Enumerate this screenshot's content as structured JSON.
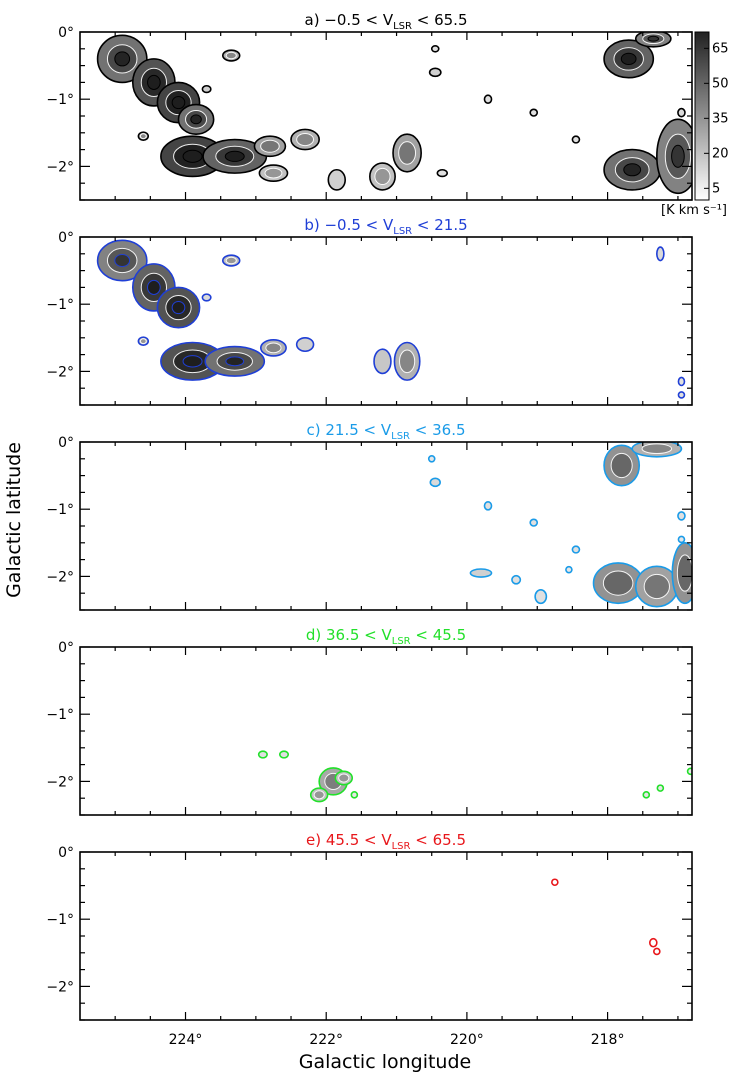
{
  "chart_data": {
    "type": "contour map",
    "xlabel": "Galactic longitude",
    "ylabel": "Galactic latitude",
    "xlim": [
      225.5,
      216.8
    ],
    "ylim": [
      -2.5,
      0
    ],
    "x_ticks": [
      224,
      222,
      220,
      218
    ],
    "x_tick_labels": [
      "224°",
      "222°",
      "220°",
      "218°"
    ],
    "y_ticks": [
      0,
      -1,
      -2
    ],
    "y_tick_labels": [
      "0°",
      "−1°",
      "−2°"
    ],
    "colorbar": {
      "ticks": [
        65,
        50,
        35,
        20,
        5
      ],
      "range": [
        0,
        72
      ],
      "unit_label": "[K km s⁻¹]"
    },
    "panels": [
      {
        "letter": "a)",
        "vmin": "−0.5",
        "vmax": "65.5",
        "color": "#000000",
        "shade": true,
        "clouds": [
          {
            "l": 224.9,
            "b": -0.4,
            "ra": 0.35,
            "rb": 0.35,
            "v": 45
          },
          {
            "l": 224.45,
            "b": -0.75,
            "ra": 0.3,
            "rb": 0.35,
            "v": 55
          },
          {
            "l": 224.1,
            "b": -1.05,
            "ra": 0.3,
            "rb": 0.3,
            "v": 60
          },
          {
            "l": 223.85,
            "b": -1.3,
            "ra": 0.25,
            "rb": 0.22,
            "v": 45
          },
          {
            "l": 223.35,
            "b": -0.35,
            "ra": 0.12,
            "rb": 0.08,
            "v": 25
          },
          {
            "l": 223.7,
            "b": -0.85,
            "ra": 0.06,
            "rb": 0.05,
            "v": 15
          },
          {
            "l": 224.6,
            "b": -1.55,
            "ra": 0.07,
            "rb": 0.06,
            "v": 25
          },
          {
            "l": 223.9,
            "b": -1.85,
            "ra": 0.45,
            "rb": 0.3,
            "v": 60
          },
          {
            "l": 223.3,
            "b": -1.85,
            "ra": 0.45,
            "rb": 0.25,
            "v": 50
          },
          {
            "l": 222.8,
            "b": -1.7,
            "ra": 0.22,
            "rb": 0.15,
            "v": 30
          },
          {
            "l": 222.75,
            "b": -2.1,
            "ra": 0.2,
            "rb": 0.12,
            "v": 20
          },
          {
            "l": 222.3,
            "b": -1.6,
            "ra": 0.2,
            "rb": 0.15,
            "v": 25
          },
          {
            "l": 221.2,
            "b": -2.15,
            "ra": 0.18,
            "rb": 0.2,
            "v": 20
          },
          {
            "l": 220.85,
            "b": -1.8,
            "ra": 0.2,
            "rb": 0.28,
            "v": 30
          },
          {
            "l": 221.85,
            "b": -2.2,
            "ra": 0.12,
            "rb": 0.15,
            "v": 15
          },
          {
            "l": 220.35,
            "b": -2.1,
            "ra": 0.07,
            "rb": 0.05,
            "v": 10
          },
          {
            "l": 217.7,
            "b": -0.4,
            "ra": 0.35,
            "rb": 0.28,
            "v": 50
          },
          {
            "l": 217.35,
            "b": -0.1,
            "ra": 0.25,
            "rb": 0.12,
            "v": 40
          },
          {
            "l": 217.65,
            "b": -2.05,
            "ra": 0.4,
            "rb": 0.3,
            "v": 45
          },
          {
            "l": 217.0,
            "b": -1.85,
            "ra": 0.3,
            "rb": 0.55,
            "v": 40
          },
          {
            "l": 220.45,
            "b": -0.25,
            "ra": 0.05,
            "rb": 0.04,
            "v": 10
          },
          {
            "l": 220.45,
            "b": -0.6,
            "ra": 0.08,
            "rb": 0.06,
            "v": 15
          },
          {
            "l": 219.7,
            "b": -1.0,
            "ra": 0.05,
            "rb": 0.06,
            "v": 10
          },
          {
            "l": 219.05,
            "b": -1.2,
            "ra": 0.05,
            "rb": 0.05,
            "v": 10
          },
          {
            "l": 218.45,
            "b": -1.6,
            "ra": 0.05,
            "rb": 0.05,
            "v": 10
          },
          {
            "l": 216.95,
            "b": -1.2,
            "ra": 0.05,
            "rb": 0.06,
            "v": 12
          }
        ]
      },
      {
        "letter": "b)",
        "vmin": "−0.5",
        "vmax": "21.5",
        "color": "#1f3fd6",
        "shade": true,
        "clouds": [
          {
            "l": 224.9,
            "b": -0.35,
            "ra": 0.35,
            "rb": 0.3,
            "v": 40
          },
          {
            "l": 224.45,
            "b": -0.75,
            "ra": 0.3,
            "rb": 0.35,
            "v": 50
          },
          {
            "l": 224.1,
            "b": -1.05,
            "ra": 0.3,
            "rb": 0.3,
            "v": 55
          },
          {
            "l": 223.35,
            "b": -0.35,
            "ra": 0.12,
            "rb": 0.08,
            "v": 20
          },
          {
            "l": 223.7,
            "b": -0.9,
            "ra": 0.06,
            "rb": 0.05,
            "v": 12
          },
          {
            "l": 224.6,
            "b": -1.55,
            "ra": 0.07,
            "rb": 0.06,
            "v": 20
          },
          {
            "l": 223.9,
            "b": -1.85,
            "ra": 0.45,
            "rb": 0.28,
            "v": 55
          },
          {
            "l": 223.3,
            "b": -1.85,
            "ra": 0.42,
            "rb": 0.22,
            "v": 45
          },
          {
            "l": 222.75,
            "b": -1.65,
            "ra": 0.18,
            "rb": 0.12,
            "v": 25
          },
          {
            "l": 222.3,
            "b": -1.6,
            "ra": 0.12,
            "rb": 0.1,
            "v": 15
          },
          {
            "l": 221.2,
            "b": -1.85,
            "ra": 0.12,
            "rb": 0.18,
            "v": 18
          },
          {
            "l": 220.85,
            "b": -1.85,
            "ra": 0.18,
            "rb": 0.28,
            "v": 25
          },
          {
            "l": 217.25,
            "b": -0.25,
            "ra": 0.05,
            "rb": 0.1,
            "v": 12
          },
          {
            "l": 216.95,
            "b": -2.15,
            "ra": 0.04,
            "rb": 0.06,
            "v": 10
          },
          {
            "l": 216.95,
            "b": -2.35,
            "ra": 0.04,
            "rb": 0.04,
            "v": 10
          }
        ]
      },
      {
        "letter": "c)",
        "vmin": "21.5",
        "vmax": "36.5",
        "color": "#1a9be8",
        "shade": true,
        "clouds": [
          {
            "l": 217.8,
            "b": -0.35,
            "ra": 0.25,
            "rb": 0.3,
            "v": 35
          },
          {
            "l": 217.3,
            "b": -0.1,
            "ra": 0.35,
            "rb": 0.12,
            "v": 25
          },
          {
            "l": 217.85,
            "b": -2.1,
            "ra": 0.35,
            "rb": 0.3,
            "v": 35
          },
          {
            "l": 217.3,
            "b": -2.15,
            "ra": 0.3,
            "rb": 0.3,
            "v": 30
          },
          {
            "l": 216.9,
            "b": -1.95,
            "ra": 0.18,
            "rb": 0.45,
            "v": 35
          },
          {
            "l": 220.5,
            "b": -0.25,
            "ra": 0.04,
            "rb": 0.04,
            "v": 8
          },
          {
            "l": 220.45,
            "b": -0.6,
            "ra": 0.07,
            "rb": 0.06,
            "v": 12
          },
          {
            "l": 219.7,
            "b": -0.95,
            "ra": 0.05,
            "rb": 0.06,
            "v": 10
          },
          {
            "l": 219.05,
            "b": -1.2,
            "ra": 0.05,
            "rb": 0.05,
            "v": 10
          },
          {
            "l": 218.45,
            "b": -1.6,
            "ra": 0.05,
            "rb": 0.05,
            "v": 10
          },
          {
            "l": 219.8,
            "b": -1.95,
            "ra": 0.15,
            "rb": 0.06,
            "v": 15
          },
          {
            "l": 219.3,
            "b": -2.05,
            "ra": 0.06,
            "rb": 0.06,
            "v": 10
          },
          {
            "l": 218.95,
            "b": -2.3,
            "ra": 0.08,
            "rb": 0.1,
            "v": 10
          },
          {
            "l": 218.55,
            "b": -1.9,
            "ra": 0.04,
            "rb": 0.04,
            "v": 8
          },
          {
            "l": 216.95,
            "b": -1.1,
            "ra": 0.05,
            "rb": 0.06,
            "v": 10
          },
          {
            "l": 216.95,
            "b": -1.45,
            "ra": 0.04,
            "rb": 0.04,
            "v": 8
          }
        ]
      },
      {
        "letter": "d)",
        "vmin": "36.5",
        "vmax": "45.5",
        "color": "#22e02a",
        "shade": true,
        "clouds": [
          {
            "l": 221.9,
            "b": -2.0,
            "ra": 0.2,
            "rb": 0.2,
            "v": 28
          },
          {
            "l": 222.1,
            "b": -2.2,
            "ra": 0.12,
            "rb": 0.1,
            "v": 20
          },
          {
            "l": 221.75,
            "b": -1.95,
            "ra": 0.12,
            "rb": 0.1,
            "v": 20
          },
          {
            "l": 222.9,
            "b": -1.6,
            "ra": 0.06,
            "rb": 0.05,
            "v": 10
          },
          {
            "l": 222.6,
            "b": -1.6,
            "ra": 0.06,
            "rb": 0.05,
            "v": 10
          },
          {
            "l": 221.6,
            "b": -2.2,
            "ra": 0.04,
            "rb": 0.04,
            "v": 8
          },
          {
            "l": 217.45,
            "b": -2.2,
            "ra": 0.04,
            "rb": 0.04,
            "v": 8
          },
          {
            "l": 217.25,
            "b": -2.1,
            "ra": 0.04,
            "rb": 0.04,
            "v": 8
          },
          {
            "l": 216.82,
            "b": -1.85,
            "ra": 0.02,
            "rb": 0.03,
            "v": 6
          }
        ]
      },
      {
        "letter": "e)",
        "vmin": "45.5",
        "vmax": "65.5",
        "color": "#e8171b",
        "shade": false,
        "clouds": [
          {
            "l": 218.75,
            "b": -0.45,
            "ra": 0.03,
            "rb": 0.03,
            "v": 8
          },
          {
            "l": 217.35,
            "b": -1.35,
            "ra": 0.05,
            "rb": 0.06,
            "v": 10
          },
          {
            "l": 217.3,
            "b": -1.48,
            "ra": 0.04,
            "rb": 0.04,
            "v": 8
          }
        ]
      }
    ]
  }
}
